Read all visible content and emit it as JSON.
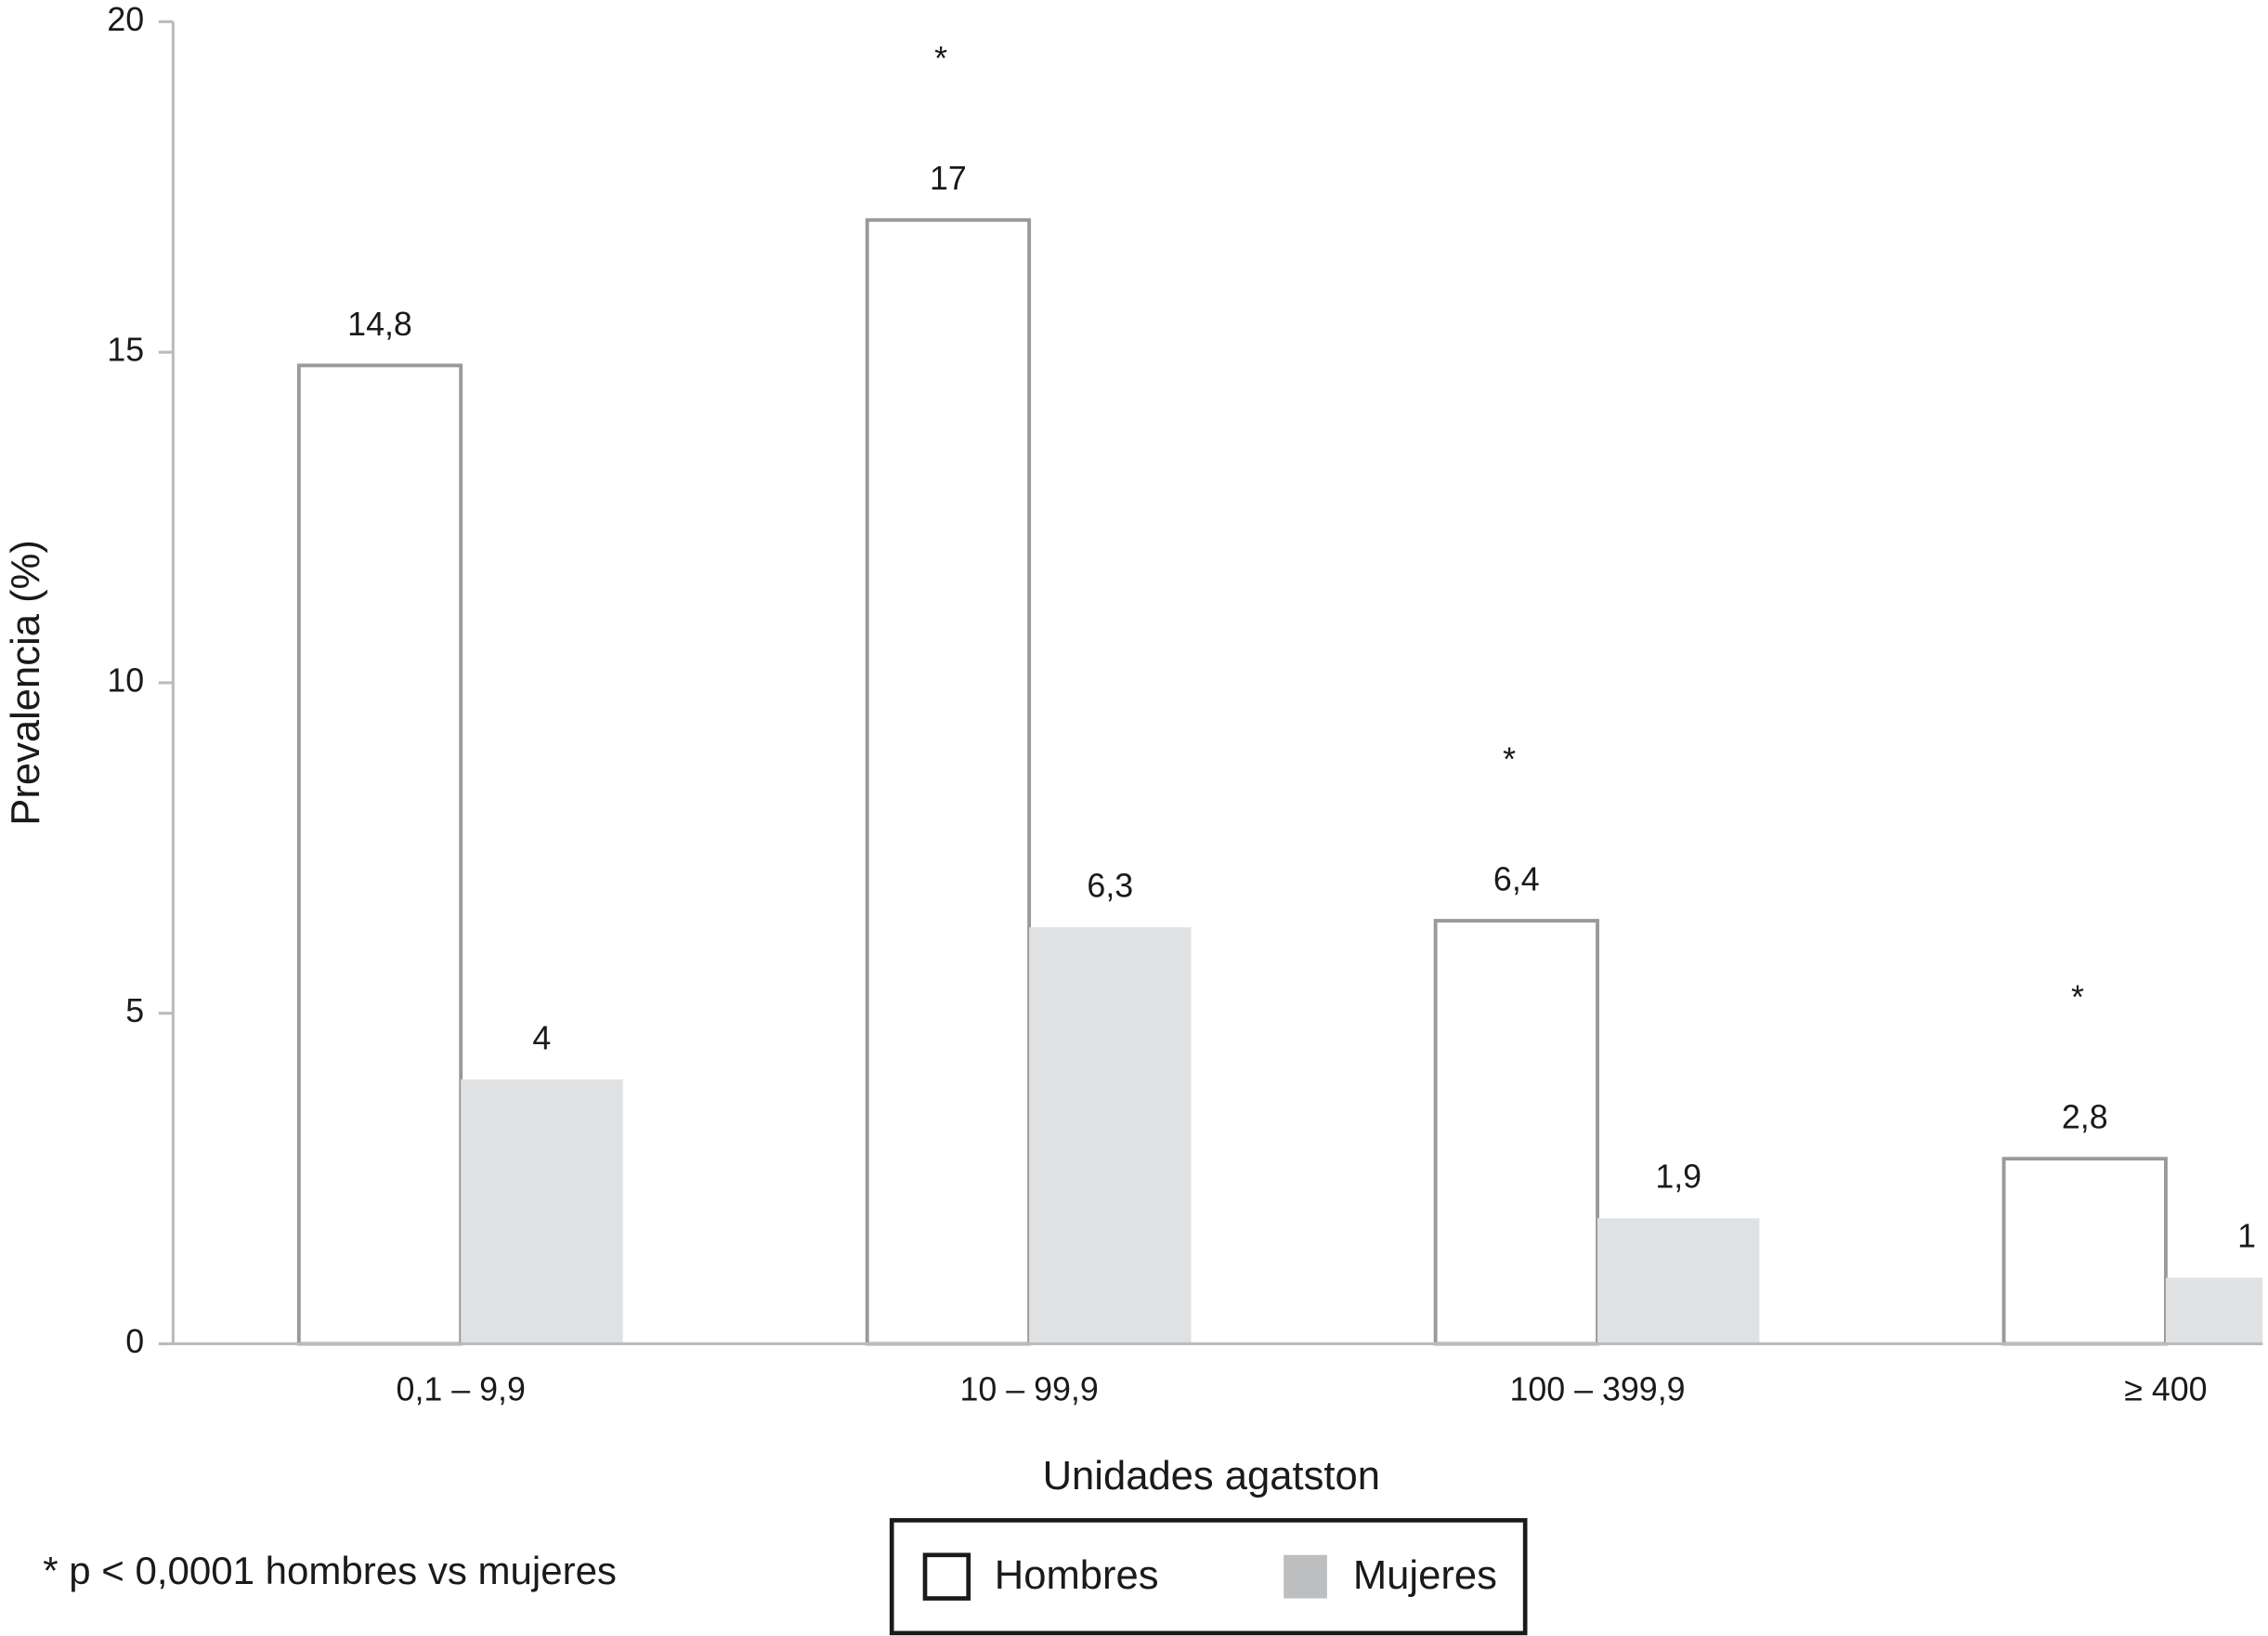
{
  "chart_data": {
    "type": "bar",
    "x_label": "Unidades agatston",
    "y_label": "Prevalencia (%)",
    "categories": [
      "0,1 – 9,9",
      "10 – 99,9",
      "100 – 399,9",
      "≥ 400"
    ],
    "series": [
      {
        "name": "Hombres",
        "color": "#ffffff",
        "values": [
          14.8,
          17,
          6.4,
          2.8
        ],
        "value_labels": [
          "14,8",
          "17",
          "6,4",
          "2,8"
        ]
      },
      {
        "name": "Mujeres",
        "color": "#e0e1e3",
        "values": [
          4,
          6.3,
          1.9,
          1
        ],
        "value_labels": [
          "4",
          "6,3",
          "1,9",
          "1"
        ]
      }
    ],
    "significance": [
      null,
      "*",
      "*",
      "*"
    ],
    "footnote": "* p < 0,0001 hombres vs mujeres",
    "ylim": [
      0,
      20
    ],
    "yticks": [
      0,
      5,
      10,
      15,
      20
    ],
    "grid": false
  }
}
